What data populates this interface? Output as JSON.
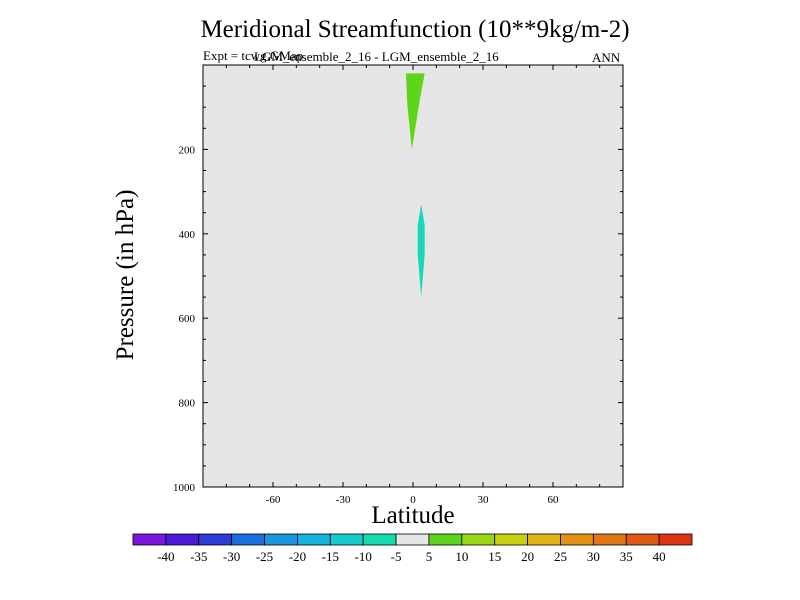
{
  "chart_data": {
    "type": "contour",
    "title": "Meridional Streamfunction (10**9kg/m-2)",
    "subtitle_left": "Expt = tcwg.GMap",
    "subtitle_center": "LGM_ensemble_2_16 - LGM_ensemble_2_16",
    "subtitle_right": "ANN",
    "xlabel": "Latitude",
    "ylabel": "Pressure (in hPa)",
    "xlim": [
      -90,
      90
    ],
    "ylim": [
      1000,
      0
    ],
    "xticks": [
      -60,
      -30,
      0,
      30,
      60
    ],
    "yticks": [
      200,
      400,
      600,
      800,
      1000
    ],
    "background_color": "#e6e6e6",
    "features": [
      {
        "name": "positive-streamfunction-cell",
        "level": 10,
        "color": "#5ed41a",
        "polygon": [
          [
            -3,
            20
          ],
          [
            5,
            20
          ],
          [
            3,
            80
          ],
          [
            -0.5,
            200
          ],
          [
            -2.5,
            90
          ]
        ]
      },
      {
        "name": "negative-streamfunction-cell",
        "level": -10,
        "color": "#19d8b8",
        "polygon": [
          [
            3.5,
            330
          ],
          [
            5,
            380
          ],
          [
            5,
            450
          ],
          [
            3.5,
            550
          ],
          [
            2,
            450
          ],
          [
            2,
            380
          ]
        ]
      }
    ],
    "colorbar": {
      "labels": [
        "-40",
        "-35",
        "-30",
        "-25",
        "-20",
        "-15",
        "-10",
        "-5",
        "5",
        "10",
        "15",
        "20",
        "25",
        "30",
        "35",
        "40"
      ],
      "colors": [
        "#7a16e0",
        "#4a1ad8",
        "#2c3cd6",
        "#1a6ee0",
        "#1a96dc",
        "#14b2dc",
        "#14ccd0",
        "#14dcb0",
        "#e6e6e6",
        "#5ed41a",
        "#98d814",
        "#c8d010",
        "#e0b412",
        "#e29212",
        "#e07614",
        "#e05a16",
        "#dc3412"
      ]
    }
  }
}
